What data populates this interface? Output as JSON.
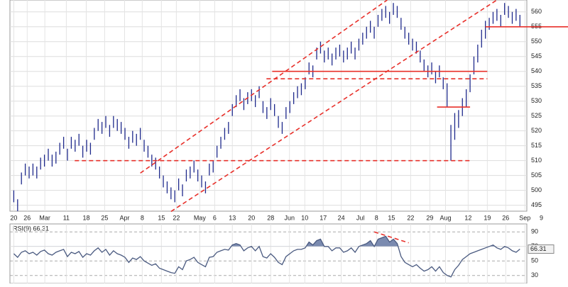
{
  "chart_data": [
    {
      "type": "ohlc",
      "color": "#1f2a8c",
      "grid": true,
      "xlim": [
        -1,
        133.8
      ],
      "ylim": [
        493,
        564
      ],
      "yticks": [
        495,
        500,
        505,
        510,
        515,
        520,
        525,
        530,
        535,
        540,
        545,
        550,
        555,
        560
      ],
      "xticks": [
        {
          "value": 0,
          "label": "20"
        },
        {
          "value": 3.5,
          "label": "26"
        },
        {
          "value": 8.1,
          "label": "Mar"
        },
        {
          "value": 13.7,
          "label": "11"
        },
        {
          "value": 18.9,
          "label": "18"
        },
        {
          "value": 23.7,
          "label": "25"
        },
        {
          "value": 28.9,
          "label": "Apr"
        },
        {
          "value": 33.5,
          "label": "8"
        },
        {
          "value": 38.5,
          "label": "15"
        },
        {
          "value": 42.4,
          "label": "22"
        },
        {
          "value": 48.5,
          "label": "May"
        },
        {
          "value": 52.4,
          "label": "6"
        },
        {
          "value": 57,
          "label": "13"
        },
        {
          "value": 62,
          "label": "20"
        },
        {
          "value": 67,
          "label": "28"
        },
        {
          "value": 71.9,
          "label": "Jun"
        },
        {
          "value": 75.9,
          "label": "10"
        },
        {
          "value": 80.7,
          "label": "17"
        },
        {
          "value": 85.4,
          "label": "24"
        },
        {
          "value": 90.4,
          "label": "Jul"
        },
        {
          "value": 94.6,
          "label": "8"
        },
        {
          "value": 98.5,
          "label": "15"
        },
        {
          "value": 103.5,
          "label": "22"
        },
        {
          "value": 108.5,
          "label": "29"
        },
        {
          "value": 112.6,
          "label": "Aug"
        },
        {
          "value": 118.5,
          "label": "12"
        },
        {
          "value": 123.5,
          "label": "19"
        },
        {
          "value": 128.3,
          "label": "26"
        },
        {
          "value": 133.3,
          "label": "Sep"
        },
        {
          "value": 137.6,
          "label": "9"
        }
      ],
      "high": [
        500,
        497,
        506,
        509,
        508,
        509,
        508,
        511,
        512,
        514,
        512,
        513,
        516,
        518,
        514,
        518,
        517,
        519,
        515,
        517,
        516,
        521,
        524,
        523,
        525,
        522,
        525,
        524,
        523,
        521,
        518,
        520,
        519,
        521,
        517,
        515,
        512,
        511,
        508,
        505,
        503,
        501,
        500,
        504,
        502,
        507,
        508,
        510,
        507,
        505,
        503,
        509,
        510,
        515,
        518,
        521,
        523,
        529,
        532,
        534,
        531,
        533,
        534,
        532,
        535,
        530,
        528,
        531,
        529,
        525,
        523,
        528,
        530,
        533,
        535,
        536,
        538,
        543,
        542,
        548,
        550,
        547,
        548,
        546,
        548,
        549,
        547,
        548,
        550,
        548,
        551,
        553,
        555,
        557,
        555,
        559,
        561,
        562,
        560,
        563,
        562,
        558,
        555,
        553,
        551,
        550,
        547,
        544,
        542,
        543,
        540,
        542,
        538,
        536,
        522,
        526,
        527,
        531,
        534,
        539,
        545,
        549,
        554,
        557,
        558,
        560,
        561,
        559,
        563,
        562,
        560,
        561,
        559
      ],
      "low": [
        496,
        493,
        502,
        505,
        504,
        505,
        504,
        507,
        508,
        510,
        508,
        509,
        512,
        514,
        510,
        514,
        513,
        515,
        511,
        513,
        512,
        517,
        520,
        519,
        521,
        518,
        521,
        520,
        519,
        517,
        514,
        516,
        515,
        517,
        513,
        511,
        508,
        507,
        504,
        501,
        499,
        497,
        496,
        500,
        498,
        503,
        504,
        506,
        503,
        501,
        499,
        505,
        506,
        511,
        514,
        517,
        519,
        525,
        528,
        530,
        527,
        529,
        530,
        528,
        531,
        526,
        524,
        527,
        525,
        521,
        519,
        524,
        526,
        529,
        531,
        532,
        534,
        539,
        538,
        544,
        546,
        543,
        544,
        542,
        544,
        545,
        543,
        544,
        546,
        544,
        547,
        549,
        551,
        553,
        551,
        555,
        557,
        558,
        556,
        559,
        558,
        554,
        551,
        549,
        547,
        546,
        543,
        540,
        538,
        539,
        536,
        538,
        534,
        528,
        510,
        517,
        521,
        525,
        528,
        533,
        539,
        543,
        548,
        551,
        554,
        556,
        557,
        555,
        559,
        558,
        556,
        557,
        555
      ],
      "annotations": [
        {
          "x": [
            33,
            97.4
          ],
          "y": [
            505.8,
            564
          ],
          "color": "#e8302a",
          "style": "dashed"
        },
        {
          "x": [
            41,
            126
          ],
          "y": [
            492.9,
            564
          ],
          "color": "#e8302a",
          "style": "dashed"
        },
        {
          "x": [
            15.9,
            119
          ],
          "y": [
            510,
            510
          ],
          "color": "#e8302a",
          "style": "dashed"
        },
        {
          "x": [
            67.4,
            123.5
          ],
          "y": [
            540,
            540
          ],
          "color": "#e8302a",
          "style": "solid"
        },
        {
          "x": [
            65.9,
            123.5
          ],
          "y": [
            537.5,
            537.5
          ],
          "color": "#e8302a",
          "style": "dashed"
        },
        {
          "x": [
            110.4,
            119
          ],
          "y": [
            528,
            528
          ],
          "color": "#e8302a",
          "style": "solid"
        },
        {
          "x": [
            123,
            145
          ],
          "y": [
            555,
            555
          ],
          "color": "#e8302a",
          "style": "solid"
        }
      ]
    },
    {
      "type": "line",
      "title": "RSI(9) 66.31",
      "color": "#4a5a80",
      "fill": "#7b8bb0",
      "overbought": 70,
      "ylim": [
        19,
        101
      ],
      "yticks": [
        30,
        50,
        70,
        90
      ],
      "values": [
        60,
        55,
        62,
        64,
        60,
        62,
        58,
        63,
        65,
        60,
        58,
        62,
        64,
        66,
        56,
        62,
        60,
        63,
        55,
        60,
        58,
        64,
        68,
        62,
        66,
        58,
        64,
        60,
        58,
        55,
        48,
        54,
        52,
        56,
        50,
        47,
        44,
        46,
        40,
        38,
        36,
        34,
        33,
        42,
        38,
        50,
        52,
        55,
        48,
        45,
        42,
        55,
        56,
        62,
        64,
        66,
        65,
        72,
        74,
        72,
        64,
        68,
        70,
        64,
        70,
        56,
        54,
        60,
        55,
        48,
        45,
        56,
        60,
        64,
        66,
        66,
        68,
        76,
        72,
        78,
        80,
        70,
        70,
        64,
        68,
        68,
        62,
        64,
        68,
        62,
        70,
        72,
        74,
        78,
        70,
        80,
        82,
        84,
        76,
        80,
        74,
        56,
        48,
        45,
        42,
        45,
        40,
        36,
        38,
        42,
        36,
        42,
        34,
        30,
        28,
        38,
        44,
        52,
        56,
        60,
        62,
        64,
        66,
        68,
        70,
        72,
        68,
        66,
        70,
        68,
        64,
        62,
        66.31
      ],
      "annotations": [
        {
          "x": [
            94,
            103
          ],
          "y": [
            90,
            75
          ],
          "color": "#e8302a",
          "style": "dashed"
        }
      ]
    }
  ]
}
